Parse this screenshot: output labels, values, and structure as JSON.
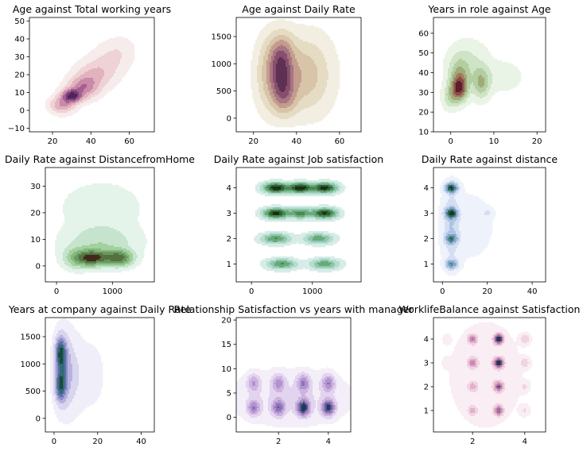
{
  "chart_data": [
    {
      "type": "kde",
      "title": "Age against Total working years",
      "xlabel": "",
      "ylabel": "",
      "xlim": [
        8,
        73
      ],
      "ylim": [
        -12,
        52
      ],
      "xticks": [
        20,
        40,
        60
      ],
      "yticks": [
        -10,
        0,
        10,
        20,
        30,
        40,
        50
      ],
      "palette": "pink-purple",
      "colors": [
        "#f7ecec",
        "#efd2d5",
        "#e2b2bf",
        "#c98aa9",
        "#a45f90",
        "#7a3e78",
        "#4f2559"
      ],
      "density": [
        {
          "x": 30,
          "y": 8,
          "sx": 3.5,
          "sy": 2.5,
          "w": 1.0
        },
        {
          "x": 36,
          "y": 13,
          "sx": 5,
          "sy": 4,
          "w": 0.55
        },
        {
          "x": 42,
          "y": 20,
          "sx": 6,
          "sy": 5,
          "w": 0.3
        },
        {
          "x": 50,
          "y": 28,
          "sx": 6,
          "sy": 6,
          "w": 0.15
        },
        {
          "x": 25,
          "y": 3,
          "sx": 4,
          "sy": 3,
          "w": 0.45
        },
        {
          "x": 56,
          "y": 34,
          "sx": 5,
          "sy": 5,
          "w": 0.07
        }
      ]
    },
    {
      "type": "kde",
      "title": "Age against Daily Rate",
      "xlabel": "",
      "ylabel": "",
      "xlim": [
        12,
        70
      ],
      "ylim": [
        -250,
        1850
      ],
      "xticks": [
        20,
        40,
        60
      ],
      "yticks": [
        0,
        500,
        1000,
        1500
      ],
      "palette": "brown-beige",
      "colors": [
        "#f2efe2",
        "#e6dcc4",
        "#d8c4a8",
        "#c49c8e",
        "#a87582",
        "#874f6d",
        "#5e3152"
      ],
      "density": [
        {
          "x": 33,
          "y": 800,
          "sx": 3.5,
          "sy": 250,
          "w": 1.0
        },
        {
          "x": 33,
          "y": 1200,
          "sx": 4,
          "sy": 250,
          "w": 0.8
        },
        {
          "x": 34,
          "y": 400,
          "sx": 4,
          "sy": 230,
          "w": 0.8
        },
        {
          "x": 42,
          "y": 800,
          "sx": 6,
          "sy": 400,
          "w": 0.5
        },
        {
          "x": 27,
          "y": 800,
          "sx": 4,
          "sy": 400,
          "w": 0.45
        },
        {
          "x": 50,
          "y": 800,
          "sx": 6,
          "sy": 450,
          "w": 0.2
        }
      ]
    },
    {
      "type": "kde",
      "title": "Years in role against Age",
      "xlabel": "",
      "ylabel": "",
      "xlim": [
        -4,
        22
      ],
      "ylim": [
        10,
        68
      ],
      "xticks": [
        0,
        10,
        20
      ],
      "yticks": [
        10,
        20,
        30,
        40,
        50,
        60
      ],
      "palette": "green-brown",
      "colors": [
        "#eaf4e6",
        "#cfe3c6",
        "#b3cf9f",
        "#a1aa7a",
        "#a07a5d",
        "#8a4a44",
        "#5a1e2c"
      ],
      "density": [
        {
          "x": 2,
          "y": 32,
          "sx": 1.2,
          "sy": 4,
          "w": 1.0
        },
        {
          "x": 2,
          "y": 38,
          "sx": 1.5,
          "sy": 6,
          "w": 0.5
        },
        {
          "x": 7,
          "y": 35,
          "sx": 1.3,
          "sy": 5,
          "w": 0.55
        },
        {
          "x": 4,
          "y": 45,
          "sx": 3,
          "sy": 7,
          "w": 0.2
        },
        {
          "x": 12,
          "y": 38,
          "sx": 3,
          "sy": 5,
          "w": 0.12
        },
        {
          "x": 0,
          "y": 28,
          "sx": 1.2,
          "sy": 4,
          "w": 0.35
        }
      ]
    },
    {
      "type": "kde",
      "title": "Daily Rate against DistancefromHome",
      "xlabel": "",
      "ylabel": "",
      "xlim": [
        -200,
        1750
      ],
      "ylim": [
        -6,
        37
      ],
      "xticks": [
        0,
        1000
      ],
      "yticks": [
        0,
        10,
        20,
        30
      ],
      "palette": "green-dark",
      "colors": [
        "#e4f4ea",
        "#c5e3cd",
        "#a4cf9f",
        "#83b77b",
        "#689860",
        "#55713f",
        "#412a1c"
      ],
      "density": [
        {
          "x": 600,
          "y": 3,
          "sx": 150,
          "sy": 2,
          "w": 1.0
        },
        {
          "x": 1150,
          "y": 3,
          "sx": 150,
          "sy": 2,
          "w": 0.95
        },
        {
          "x": 850,
          "y": 3,
          "sx": 200,
          "sy": 2,
          "w": 0.75
        },
        {
          "x": 350,
          "y": 3,
          "sx": 150,
          "sy": 2.5,
          "w": 0.6
        },
        {
          "x": 800,
          "y": 9,
          "sx": 400,
          "sy": 4,
          "w": 0.35
        },
        {
          "x": 800,
          "y": 22,
          "sx": 450,
          "sy": 6,
          "w": 0.15
        }
      ]
    },
    {
      "type": "kde",
      "title": "Daily Rate against Job satisfaction",
      "xlabel": "",
      "ylabel": "",
      "xlim": [
        -250,
        1800
      ],
      "ylim": [
        0.3,
        4.8
      ],
      "xticks": [
        0,
        1000
      ],
      "yticks": [
        1,
        2,
        3,
        4
      ],
      "palette": "teal-dark-green",
      "colors": [
        "#d7ece6",
        "#b5ddd0",
        "#8fc7ac",
        "#69aa79",
        "#4a8852",
        "#2f5f33",
        "#17301a"
      ],
      "density": [
        {
          "x": 400,
          "y": 4,
          "sx": 130,
          "sy": 0.13,
          "w": 1.0
        },
        {
          "x": 800,
          "y": 4,
          "sx": 130,
          "sy": 0.13,
          "w": 1.0
        },
        {
          "x": 1200,
          "y": 4,
          "sx": 130,
          "sy": 0.13,
          "w": 0.95
        },
        {
          "x": 400,
          "y": 3,
          "sx": 130,
          "sy": 0.13,
          "w": 0.95
        },
        {
          "x": 800,
          "y": 3,
          "sx": 130,
          "sy": 0.13,
          "w": 0.6
        },
        {
          "x": 1200,
          "y": 3,
          "sx": 130,
          "sy": 0.13,
          "w": 0.9
        },
        {
          "x": 400,
          "y": 2,
          "sx": 150,
          "sy": 0.13,
          "w": 0.55
        },
        {
          "x": 1100,
          "y": 2,
          "sx": 150,
          "sy": 0.13,
          "w": 0.5
        },
        {
          "x": 500,
          "y": 1,
          "sx": 150,
          "sy": 0.13,
          "w": 0.55
        },
        {
          "x": 1200,
          "y": 1,
          "sx": 150,
          "sy": 0.13,
          "w": 0.5
        }
      ]
    },
    {
      "type": "kde",
      "title": "Daily Rate against distance",
      "xlabel": "",
      "ylabel": "",
      "xlim": [
        -4,
        46
      ],
      "ylim": [
        0.3,
        4.8
      ],
      "xticks": [
        0,
        20,
        40
      ],
      "yticks": [
        1,
        2,
        3,
        4
      ],
      "palette": "blue-teal-dark",
      "colors": [
        "#eef2fb",
        "#d4def3",
        "#aec3e3",
        "#7fa6c7",
        "#4e8691",
        "#2c6457",
        "#133b25"
      ],
      "density": [
        {
          "x": 4,
          "y": 4,
          "sx": 1.8,
          "sy": 0.13,
          "w": 1.0
        },
        {
          "x": 4,
          "y": 3,
          "sx": 1.8,
          "sy": 0.13,
          "w": 0.95
        },
        {
          "x": 4,
          "y": 2,
          "sx": 1.8,
          "sy": 0.13,
          "w": 0.6
        },
        {
          "x": 4,
          "y": 1,
          "sx": 1.8,
          "sy": 0.13,
          "w": 0.6
        },
        {
          "x": 4,
          "y": 2.5,
          "sx": 2.5,
          "sy": 0.9,
          "w": 0.25
        },
        {
          "x": 20,
          "y": 3,
          "sx": 1.5,
          "sy": 0.12,
          "w": 0.15
        },
        {
          "x": 12,
          "y": 2.5,
          "sx": 10,
          "sy": 1.2,
          "w": 0.06
        }
      ]
    },
    {
      "type": "kde",
      "title": "Years at company against Daily Rate",
      "xlabel": "",
      "ylabel": "",
      "xlim": [
        -4,
        46
      ],
      "ylim": [
        -250,
        1850
      ],
      "xticks": [
        0,
        20,
        40
      ],
      "yticks": [
        0,
        500,
        1000,
        1500
      ],
      "palette": "lavender-green",
      "colors": [
        "#f0eef8",
        "#d8d5ee",
        "#b6b3df",
        "#8c8ec8",
        "#5e71a5",
        "#346a78",
        "#1a4a3e"
      ],
      "density": [
        {
          "x": 3,
          "y": 1200,
          "sx": 1.5,
          "sy": 180,
          "w": 1.0
        },
        {
          "x": 3,
          "y": 600,
          "sx": 1.5,
          "sy": 180,
          "w": 0.9
        },
        {
          "x": 4,
          "y": 900,
          "sx": 2.5,
          "sy": 400,
          "w": 0.55
        },
        {
          "x": 8,
          "y": 800,
          "sx": 4,
          "sy": 450,
          "w": 0.22
        },
        {
          "x": 18,
          "y": 800,
          "sx": 4,
          "sy": 450,
          "w": 0.08
        }
      ]
    },
    {
      "type": "kde",
      "title": "Relationship Satisfaction vs years with manager",
      "xlabel": "",
      "ylabel": "",
      "xlim": [
        0.3,
        4.9
      ],
      "ylim": [
        -3,
        20.5
      ],
      "xticks": [
        2,
        4
      ],
      "yticks": [
        0,
        5,
        10,
        15,
        20
      ],
      "palette": "lavender-navy",
      "colors": [
        "#f3eef8",
        "#e2d4ee",
        "#cdb3e0",
        "#b192cf",
        "#8a74b6",
        "#4f578a",
        "#203a57"
      ],
      "density": [
        {
          "x": 1,
          "y": 2,
          "sx": 0.17,
          "sy": 1.1,
          "w": 0.55
        },
        {
          "x": 2,
          "y": 2,
          "sx": 0.17,
          "sy": 1.1,
          "w": 0.65
        },
        {
          "x": 3,
          "y": 2,
          "sx": 0.17,
          "sy": 1.1,
          "w": 1.0
        },
        {
          "x": 4,
          "y": 2,
          "sx": 0.17,
          "sy": 1.1,
          "w": 0.95
        },
        {
          "x": 1,
          "y": 7,
          "sx": 0.17,
          "sy": 1.2,
          "w": 0.4
        },
        {
          "x": 2,
          "y": 7,
          "sx": 0.17,
          "sy": 1.2,
          "w": 0.45
        },
        {
          "x": 3,
          "y": 7,
          "sx": 0.17,
          "sy": 1.2,
          "w": 0.55
        },
        {
          "x": 4,
          "y": 7,
          "sx": 0.17,
          "sy": 1.2,
          "w": 0.55
        },
        {
          "x": 2.5,
          "y": 4,
          "sx": 1.5,
          "sy": 3.5,
          "w": 0.15
        }
      ]
    },
    {
      "type": "kde",
      "title": "WorklifeBalance against Satisfaction",
      "xlabel": "",
      "ylabel": "",
      "xlim": [
        0.5,
        4.8
      ],
      "ylim": [
        0.1,
        4.9
      ],
      "xticks": [
        2,
        4
      ],
      "yticks": [
        1,
        2,
        3,
        4
      ],
      "palette": "pink-navy",
      "colors": [
        "#f9eef3",
        "#f1d3e2",
        "#e2b0cb",
        "#cb8ab4",
        "#9d6c9c",
        "#5d4a7a",
        "#263553"
      ],
      "density": [
        {
          "x": 3,
          "y": 4,
          "sx": 0.12,
          "sy": 0.14,
          "w": 1.0
        },
        {
          "x": 3,
          "y": 3,
          "sx": 0.12,
          "sy": 0.14,
          "w": 0.95
        },
        {
          "x": 3,
          "y": 2,
          "sx": 0.12,
          "sy": 0.14,
          "w": 0.65
        },
        {
          "x": 3,
          "y": 1,
          "sx": 0.12,
          "sy": 0.14,
          "w": 0.6
        },
        {
          "x": 2,
          "y": 4,
          "sx": 0.12,
          "sy": 0.14,
          "w": 0.5
        },
        {
          "x": 2,
          "y": 3,
          "sx": 0.12,
          "sy": 0.14,
          "w": 0.45
        },
        {
          "x": 2,
          "y": 2,
          "sx": 0.12,
          "sy": 0.14,
          "w": 0.28
        },
        {
          "x": 2,
          "y": 1,
          "sx": 0.12,
          "sy": 0.14,
          "w": 0.3
        },
        {
          "x": 4,
          "y": 4,
          "sx": 0.12,
          "sy": 0.14,
          "w": 0.22
        },
        {
          "x": 4,
          "y": 3,
          "sx": 0.12,
          "sy": 0.14,
          "w": 0.2
        },
        {
          "x": 4,
          "y": 2,
          "sx": 0.12,
          "sy": 0.14,
          "w": 0.12
        },
        {
          "x": 4,
          "y": 1,
          "sx": 0.12,
          "sy": 0.14,
          "w": 0.12
        },
        {
          "x": 1,
          "y": 4,
          "sx": 0.1,
          "sy": 0.14,
          "w": 0.07
        },
        {
          "x": 1,
          "y": 3,
          "sx": 0.1,
          "sy": 0.14,
          "w": 0.06
        },
        {
          "x": 2.5,
          "y": 2.5,
          "sx": 1.0,
          "sy": 1.6,
          "w": 0.08
        }
      ]
    }
  ]
}
